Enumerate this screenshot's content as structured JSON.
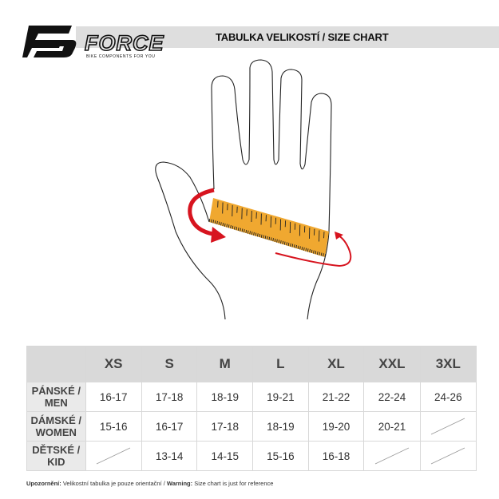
{
  "brand": {
    "name": "FORCE",
    "tagline": "BIKE COMPONENTS FOR YOU"
  },
  "header": {
    "title": "TABULKA VELIKOSTÍ / SIZE CHART"
  },
  "colors": {
    "band": "#dedede",
    "ruler": "#f0a830",
    "arrow": "#d7141f",
    "header_cells": "#d9d9d9"
  },
  "table": {
    "columns": [
      "XS",
      "S",
      "M",
      "L",
      "XL",
      "XXL",
      "3XL"
    ],
    "rows": [
      {
        "label_line1": "PÁNSKÉ /",
        "label_line2": "MEN",
        "values": [
          "16-17",
          "17-18",
          "18-19",
          "19-21",
          "21-22",
          "22-24",
          "24-26"
        ]
      },
      {
        "label_line1": "DÁMSKÉ /",
        "label_line2": "WOMEN",
        "values": [
          "15-16",
          "16-17",
          "17-18",
          "18-19",
          "19-20",
          "20-21",
          null
        ]
      },
      {
        "label_line1": "DĚTSKÉ /",
        "label_line2": "KID",
        "values": [
          null,
          "13-14",
          "14-15",
          "15-16",
          "16-18",
          null,
          null
        ]
      }
    ]
  },
  "footer": {
    "cz_label": "Upozornění:",
    "cz_text": " Velikostní tabulka je pouze orientační / ",
    "en_label": "Warning:",
    "en_text": " Size chart is just for reference"
  }
}
